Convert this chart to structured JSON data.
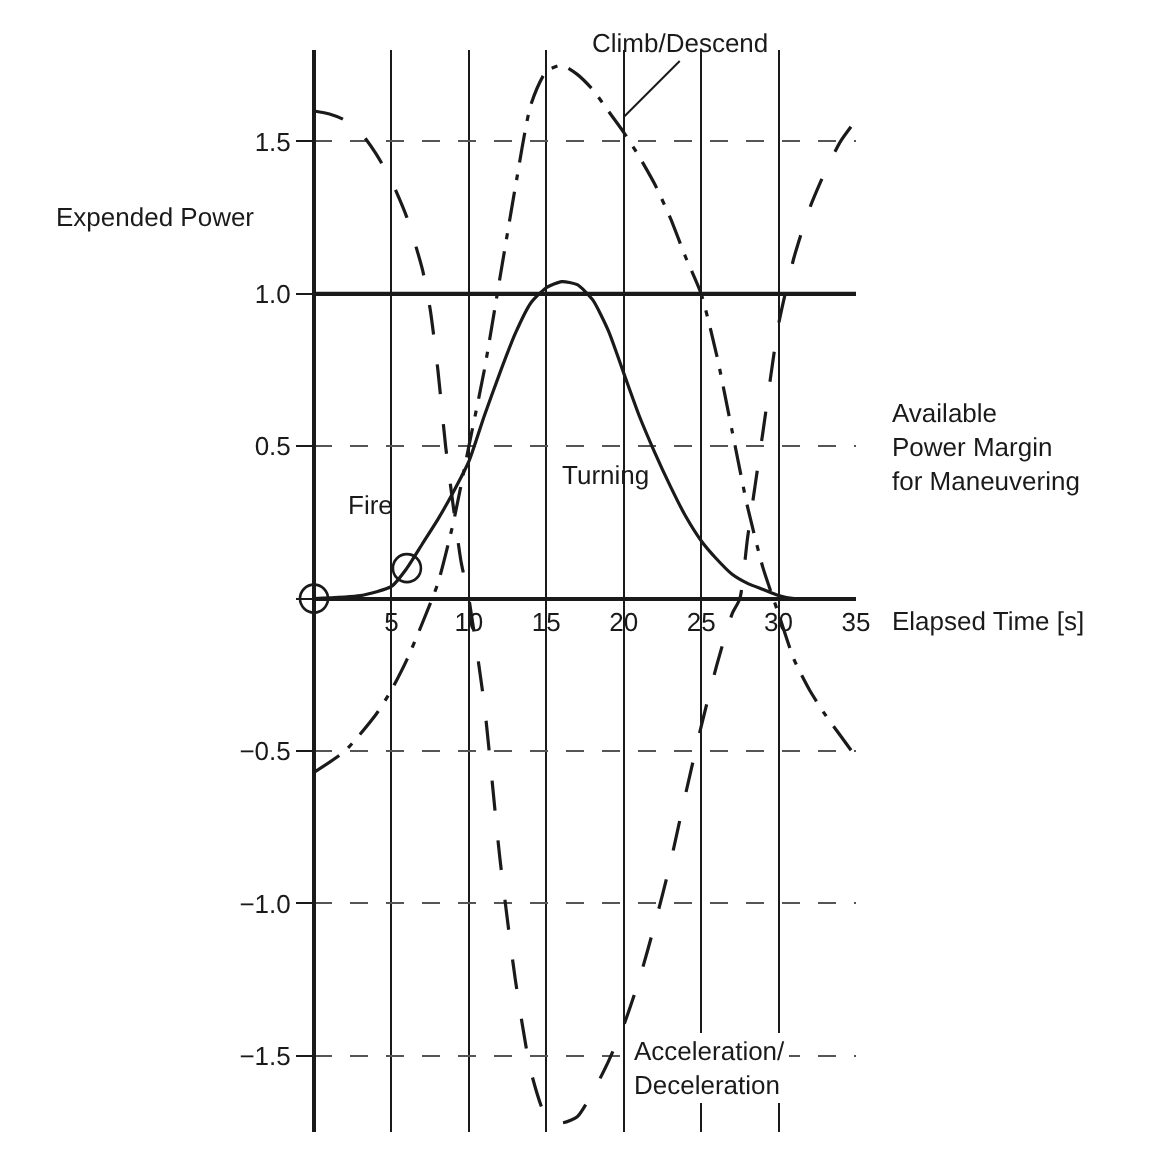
{
  "chart_data": {
    "type": "line",
    "xlabel": "Elapsed Time [s]",
    "ylabel": "Expended Power",
    "xlim": [
      0,
      35
    ],
    "xticks": [
      {
        "value": 0,
        "label": null
      },
      5,
      10,
      15,
      20,
      25,
      30,
      35
    ],
    "ylim": [
      -1.75,
      1.8
    ],
    "yticks": [
      {
        "value": -1.5,
        "label": "−1.5"
      },
      {
        "value": -1,
        "label": "−1.0"
      },
      {
        "value": -0.5,
        "label": "−0.5"
      },
      {
        "value": 0,
        "label": null
      },
      0.5,
      {
        "value": 1,
        "label": "1.0"
      },
      1.5
    ],
    "grid": true,
    "legend": false,
    "marker": "none",
    "ref_lines": [
      {
        "axis": "y",
        "value": 1,
        "color": "#1a1a1a",
        "line_style": "solid"
      }
    ],
    "series": [
      {
        "name": "Turning",
        "color": "#1a1a1a",
        "line_style": "solid",
        "x": [
          0,
          3,
          5,
          6,
          7,
          8,
          9,
          10,
          11,
          12,
          13,
          14,
          15,
          16,
          17,
          18,
          19,
          20,
          21,
          22,
          23,
          24,
          25,
          26,
          27,
          28,
          29,
          30,
          31,
          35
        ],
        "values": [
          0,
          0.01,
          0.04,
          0.1,
          0.18,
          0.26,
          0.35,
          0.45,
          0.6,
          0.74,
          0.87,
          0.97,
          1.02,
          1.04,
          1.03,
          0.98,
          0.88,
          0.74,
          0.6,
          0.48,
          0.37,
          0.27,
          0.19,
          0.13,
          0.08,
          0.05,
          0.03,
          0.01,
          0,
          0
        ]
      },
      {
        "name": "Climb/Descend",
        "color": "#1a1a1a",
        "line_style": "dashdot",
        "x": [
          0,
          2,
          4,
          5,
          6,
          7,
          8,
          9,
          10,
          11,
          12,
          13,
          14,
          15,
          16,
          17,
          18,
          19,
          20,
          21,
          22,
          23,
          24,
          25,
          26,
          27,
          28,
          29,
          30,
          31,
          32,
          33,
          34,
          35
        ],
        "values": [
          -0.57,
          -0.5,
          -0.38,
          -0.3,
          -0.2,
          -0.08,
          0.05,
          0.25,
          0.5,
          0.75,
          1.05,
          1.35,
          1.62,
          1.73,
          1.75,
          1.72,
          1.67,
          1.6,
          1.53,
          1.45,
          1.36,
          1.25,
          1.12,
          1.0,
          0.8,
          0.55,
          0.3,
          0.1,
          -0.05,
          -0.2,
          -0.3,
          -0.38,
          -0.45,
          -0.52
        ]
      },
      {
        "name": "Acceleration/\nDeceleration",
        "color": "#1a1a1a",
        "line_style": "dashed",
        "x": [
          0,
          1,
          2,
          3,
          4,
          5,
          6,
          7,
          7.5,
          8,
          8.5,
          9,
          9.5,
          10,
          11,
          12,
          13,
          14,
          15,
          16,
          17,
          18,
          19,
          20,
          21,
          22,
          23,
          24,
          25,
          26,
          27,
          27.5,
          28,
          29,
          30,
          31,
          32,
          33,
          34,
          35
        ],
        "values": [
          1.6,
          1.59,
          1.57,
          1.53,
          1.46,
          1.37,
          1.25,
          1.08,
          0.95,
          0.75,
          0.5,
          0.3,
          0.12,
          0,
          -0.35,
          -0.85,
          -1.25,
          -1.55,
          -1.7,
          -1.72,
          -1.7,
          -1.62,
          -1.52,
          -1.4,
          -1.25,
          -1.07,
          -0.87,
          -0.64,
          -0.42,
          -0.22,
          -0.05,
          0,
          0.2,
          0.55,
          0.9,
          1.12,
          1.28,
          1.4,
          1.5,
          1.57
        ]
      },
      {
        "color": "#1a1a1a",
        "type": "scatter",
        "marker": "circle",
        "x": [
          0,
          6
        ],
        "values": [
          0,
          0.1
        ]
      }
    ],
    "annotations": [
      {
        "text": "Fire",
        "x": 6,
        "y": 0.1
      },
      "Available\nPower Margin\nfor Maneuvering"
    ]
  }
}
